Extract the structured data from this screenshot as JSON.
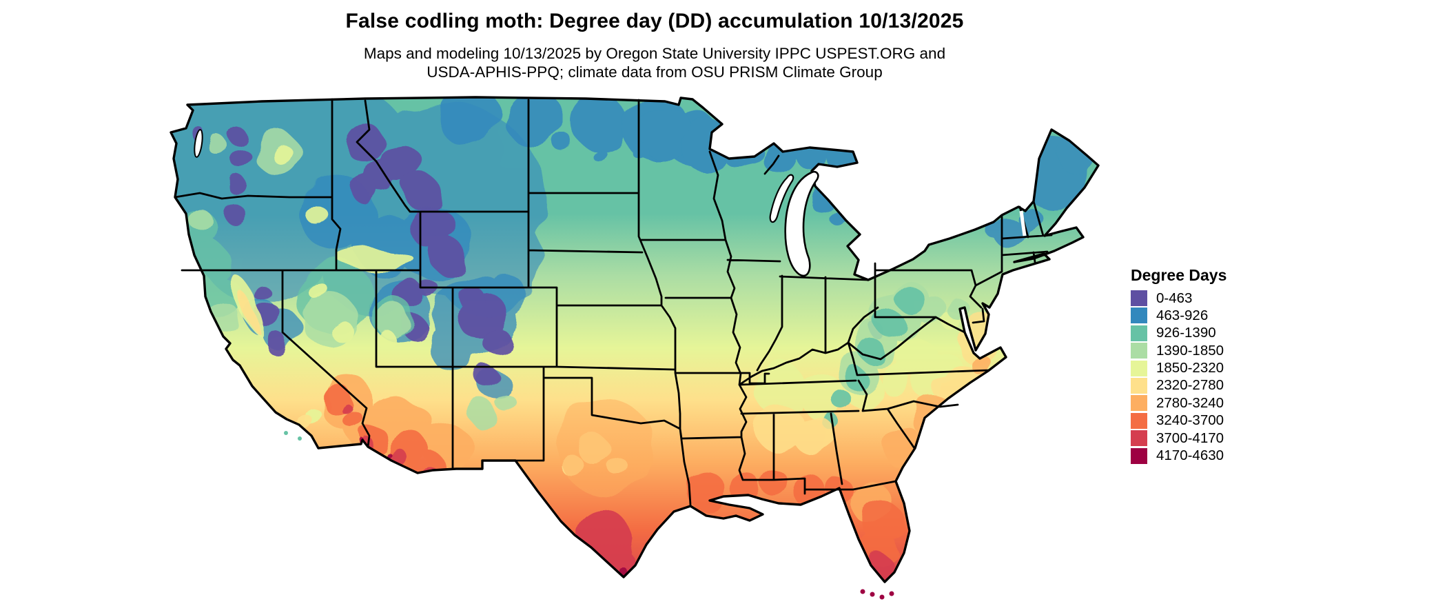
{
  "header": {
    "title": "False codling moth: Degree day (DD) accumulation 10/13/2025",
    "subtitle_line1": "Maps and modeling 10/13/2025 by Oregon State University IPPC USPEST.ORG and",
    "subtitle_line2": "USDA-APHIS-PPQ; climate data from OSU PRISM Climate Group"
  },
  "legend": {
    "title": "Degree Days",
    "entries": [
      {
        "label": "0-463",
        "color": "#5e4fa2"
      },
      {
        "label": "463-926",
        "color": "#3288bd"
      },
      {
        "label": "926-1390",
        "color": "#66c2a5"
      },
      {
        "label": "1390-1850",
        "color": "#abdda4"
      },
      {
        "label": "1850-2320",
        "color": "#e6f598"
      },
      {
        "label": "2320-2780",
        "color": "#fee08b"
      },
      {
        "label": "2780-3240",
        "color": "#fdae61"
      },
      {
        "label": "3240-3700",
        "color": "#f46d43"
      },
      {
        "label": "3700-4170",
        "color": "#d53e4f"
      },
      {
        "label": "4170-4630",
        "color": "#9e0142"
      }
    ]
  },
  "map": {
    "description": "Choropleth raster map of the contiguous United States showing accumulated degree days, with black state borders"
  }
}
